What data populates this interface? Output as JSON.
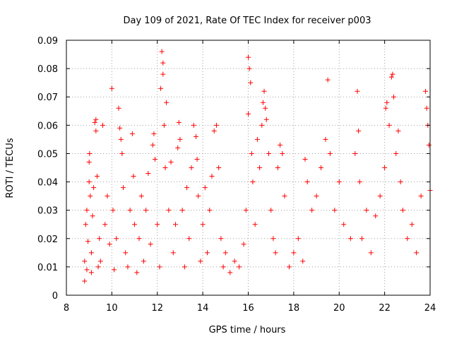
{
  "chart_data": {
    "type": "scatter",
    "title": "Day 109 of 2021, Rate Of TEC Index for receiver p003",
    "xlabel": "GPS time / hours",
    "ylabel": "ROTI / TECUs",
    "xlim": [
      8,
      24
    ],
    "ylim": [
      0,
      0.09
    ],
    "x_ticks": [
      8,
      10,
      12,
      14,
      16,
      18,
      20,
      22,
      24
    ],
    "x_tick_labels": [
      "8",
      "10",
      "12",
      "14",
      "16",
      "18",
      "20",
      "22",
      "24"
    ],
    "y_ticks": [
      0,
      0.01,
      0.02,
      0.03,
      0.04,
      0.05,
      0.06,
      0.07,
      0.08,
      0.09
    ],
    "y_tick_labels": [
      "0",
      "0.01",
      "0.02",
      "0.03",
      "0.04",
      "0.05",
      "0.06",
      "0.07",
      "0.08",
      "0.09"
    ],
    "grid": true,
    "marker": "+",
    "color": "#ff0000",
    "series": [
      {
        "name": "ROTI",
        "points": [
          [
            8.8,
            0.005
          ],
          [
            8.8,
            0.012
          ],
          [
            8.85,
            0.025
          ],
          [
            8.9,
            0.03
          ],
          [
            8.9,
            0.009
          ],
          [
            8.95,
            0.019
          ],
          [
            9.0,
            0.047
          ],
          [
            9.0,
            0.04
          ],
          [
            9.02,
            0.05
          ],
          [
            9.05,
            0.035
          ],
          [
            9.1,
            0.015
          ],
          [
            9.1,
            0.008
          ],
          [
            9.15,
            0.028
          ],
          [
            9.2,
            0.038
          ],
          [
            9.25,
            0.061
          ],
          [
            9.3,
            0.062
          ],
          [
            9.3,
            0.058
          ],
          [
            9.35,
            0.042
          ],
          [
            9.4,
            0.01
          ],
          [
            9.45,
            0.02
          ],
          [
            9.5,
            0.012
          ],
          [
            9.6,
            0.06
          ],
          [
            9.7,
            0.025
          ],
          [
            9.8,
            0.035
          ],
          [
            9.9,
            0.018
          ],
          [
            10.0,
            0.073
          ],
          [
            10.05,
            0.03
          ],
          [
            10.1,
            0.009
          ],
          [
            10.2,
            0.02
          ],
          [
            10.3,
            0.066
          ],
          [
            10.35,
            0.059
          ],
          [
            10.4,
            0.055
          ],
          [
            10.45,
            0.05
          ],
          [
            10.5,
            0.038
          ],
          [
            10.6,
            0.015
          ],
          [
            10.7,
            0.01
          ],
          [
            10.8,
            0.03
          ],
          [
            10.9,
            0.057
          ],
          [
            10.95,
            0.042
          ],
          [
            11.0,
            0.025
          ],
          [
            11.1,
            0.008
          ],
          [
            11.2,
            0.02
          ],
          [
            11.3,
            0.035
          ],
          [
            11.4,
            0.012
          ],
          [
            11.5,
            0.03
          ],
          [
            11.6,
            0.043
          ],
          [
            11.7,
            0.018
          ],
          [
            11.8,
            0.053
          ],
          [
            11.85,
            0.057
          ],
          [
            11.9,
            0.048
          ],
          [
            12.0,
            0.025
          ],
          [
            12.1,
            0.01
          ],
          [
            12.15,
            0.073
          ],
          [
            12.2,
            0.086
          ],
          [
            12.25,
            0.082
          ],
          [
            12.25,
            0.078
          ],
          [
            12.3,
            0.06
          ],
          [
            12.35,
            0.045
          ],
          [
            12.4,
            0.068
          ],
          [
            12.5,
            0.03
          ],
          [
            12.6,
            0.047
          ],
          [
            12.7,
            0.015
          ],
          [
            12.8,
            0.025
          ],
          [
            12.9,
            0.052
          ],
          [
            12.95,
            0.061
          ],
          [
            13.0,
            0.055
          ],
          [
            13.1,
            0.03
          ],
          [
            13.2,
            0.01
          ],
          [
            13.3,
            0.038
          ],
          [
            13.4,
            0.02
          ],
          [
            13.5,
            0.045
          ],
          [
            13.6,
            0.06
          ],
          [
            13.7,
            0.056
          ],
          [
            13.75,
            0.048
          ],
          [
            13.8,
            0.035
          ],
          [
            13.9,
            0.012
          ],
          [
            14.0,
            0.025
          ],
          [
            14.1,
            0.038
          ],
          [
            14.2,
            0.015
          ],
          [
            14.3,
            0.03
          ],
          [
            14.4,
            0.042
          ],
          [
            14.5,
            0.058
          ],
          [
            14.6,
            0.06
          ],
          [
            14.7,
            0.045
          ],
          [
            14.8,
            0.02
          ],
          [
            14.9,
            0.01
          ],
          [
            15.0,
            0.015
          ],
          [
            15.2,
            0.008
          ],
          [
            15.4,
            0.012
          ],
          [
            15.6,
            0.01
          ],
          [
            15.8,
            0.018
          ],
          [
            15.9,
            0.03
          ],
          [
            16.0,
            0.064
          ],
          [
            16.0,
            0.084
          ],
          [
            16.05,
            0.08
          ],
          [
            16.1,
            0.075
          ],
          [
            16.15,
            0.05
          ],
          [
            16.2,
            0.04
          ],
          [
            16.3,
            0.025
          ],
          [
            16.4,
            0.055
          ],
          [
            16.5,
            0.045
          ],
          [
            16.6,
            0.06
          ],
          [
            16.65,
            0.068
          ],
          [
            16.7,
            0.072
          ],
          [
            16.75,
            0.066
          ],
          [
            16.8,
            0.062
          ],
          [
            16.9,
            0.05
          ],
          [
            17.0,
            0.03
          ],
          [
            17.1,
            0.02
          ],
          [
            17.2,
            0.015
          ],
          [
            17.3,
            0.045
          ],
          [
            17.4,
            0.053
          ],
          [
            17.5,
            0.05
          ],
          [
            17.6,
            0.035
          ],
          [
            17.8,
            0.01
          ],
          [
            18.0,
            0.015
          ],
          [
            18.2,
            0.02
          ],
          [
            18.4,
            0.012
          ],
          [
            18.5,
            0.048
          ],
          [
            18.6,
            0.04
          ],
          [
            18.8,
            0.03
          ],
          [
            19.0,
            0.035
          ],
          [
            19.2,
            0.045
          ],
          [
            19.4,
            0.055
          ],
          [
            19.5,
            0.076
          ],
          [
            19.6,
            0.05
          ],
          [
            19.8,
            0.03
          ],
          [
            20.0,
            0.04
          ],
          [
            20.2,
            0.025
          ],
          [
            20.5,
            0.02
          ],
          [
            20.7,
            0.05
          ],
          [
            20.8,
            0.072
          ],
          [
            20.85,
            0.058
          ],
          [
            20.9,
            0.04
          ],
          [
            21.0,
            0.02
          ],
          [
            21.2,
            0.03
          ],
          [
            21.4,
            0.015
          ],
          [
            21.6,
            0.028
          ],
          [
            21.8,
            0.035
          ],
          [
            22.0,
            0.045
          ],
          [
            22.05,
            0.066
          ],
          [
            22.1,
            0.068
          ],
          [
            22.2,
            0.06
          ],
          [
            22.3,
            0.077
          ],
          [
            22.35,
            0.078
          ],
          [
            22.4,
            0.07
          ],
          [
            22.5,
            0.05
          ],
          [
            22.6,
            0.058
          ],
          [
            22.7,
            0.04
          ],
          [
            22.8,
            0.03
          ],
          [
            23.0,
            0.02
          ],
          [
            23.2,
            0.025
          ],
          [
            23.4,
            0.015
          ],
          [
            23.6,
            0.035
          ],
          [
            23.8,
            0.072
          ],
          [
            23.85,
            0.066
          ],
          [
            23.9,
            0.06
          ],
          [
            23.95,
            0.053
          ],
          [
            24.0,
            0.037
          ]
        ]
      }
    ]
  }
}
